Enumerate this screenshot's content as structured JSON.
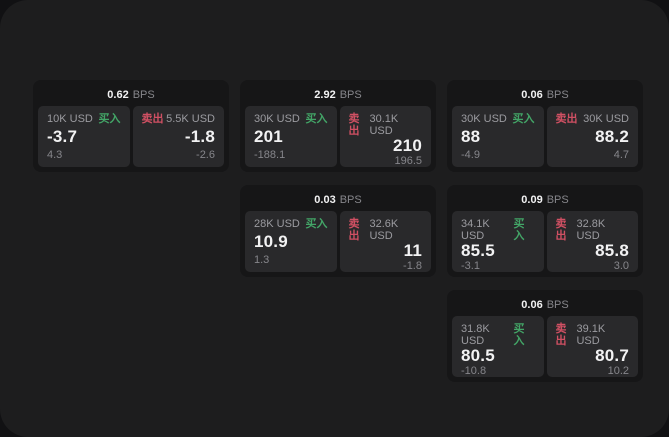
{
  "labels": {
    "bps_suffix": "BPS",
    "buy": "买入",
    "sell": "卖出"
  },
  "colors": {
    "background_outer": "#111113",
    "window": "#1d1d1e",
    "card": "#161617",
    "tile": "#29292b",
    "buy_green": "#43a567",
    "sell_red": "#d05063",
    "text_bright": "#f2f2f3",
    "text_gray": "#9b9ba0"
  },
  "cards": [
    {
      "col": 1,
      "row": 1,
      "bps": "0.62",
      "buy": {
        "notional": "10K USD",
        "price": "-3.7",
        "change": "4.3"
      },
      "sell": {
        "notional": "5.5K USD",
        "price": "-1.8",
        "change": "-2.6"
      }
    },
    {
      "col": 2,
      "row": 1,
      "bps": "2.92",
      "buy": {
        "notional": "30K USD",
        "price": "201",
        "change": "-188.1"
      },
      "sell": {
        "notional": "30.1K USD",
        "price": "210",
        "change": "196.5"
      }
    },
    {
      "col": 3,
      "row": 1,
      "bps": "0.06",
      "buy": {
        "notional": "30K USD",
        "price": "88",
        "change": "-4.9"
      },
      "sell": {
        "notional": "30K USD",
        "price": "88.2",
        "change": "4.7"
      }
    },
    {
      "col": 2,
      "row": 2,
      "bps": "0.03",
      "buy": {
        "notional": "28K USD",
        "price": "10.9",
        "change": "1.3"
      },
      "sell": {
        "notional": "32.6K USD",
        "price": "11",
        "change": "-1.8"
      }
    },
    {
      "col": 3,
      "row": 2,
      "bps": "0.09",
      "buy": {
        "notional": "34.1K USD",
        "price": "85.5",
        "change": "-3.1"
      },
      "sell": {
        "notional": "32.8K USD",
        "price": "85.8",
        "change": "3.0"
      }
    },
    {
      "col": 3,
      "row": 3,
      "bps": "0.06",
      "buy": {
        "notional": "31.8K USD",
        "price": "80.5",
        "change": "-10.8"
      },
      "sell": {
        "notional": "39.1K USD",
        "price": "80.7",
        "change": "10.2"
      }
    }
  ]
}
